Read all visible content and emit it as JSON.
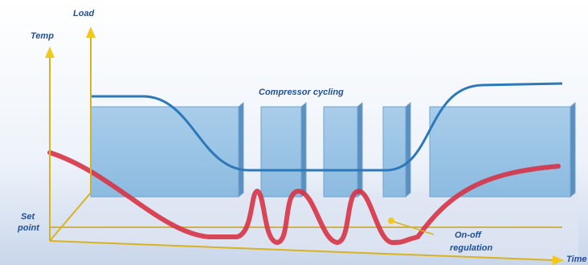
{
  "diagram": {
    "axes": {
      "load": "Load",
      "temp": "Temp",
      "time": "Time"
    },
    "labels": {
      "compressor": "Compressor cycling",
      "set_point": [
        "Set",
        "point"
      ],
      "regulation": [
        "On-off",
        "regulation"
      ]
    }
  }
}
